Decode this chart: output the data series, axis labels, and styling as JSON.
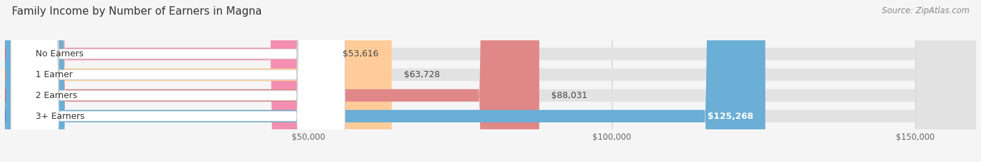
{
  "title": "Family Income by Number of Earners in Magna",
  "source": "Source: ZipAtlas.com",
  "categories": [
    "No Earners",
    "1 Earner",
    "2 Earners",
    "3+ Earners"
  ],
  "values": [
    53616,
    63728,
    88031,
    125268
  ],
  "labels": [
    "$53,616",
    "$63,728",
    "$88,031",
    "$125,268"
  ],
  "bar_colors": [
    "#f48fb1",
    "#ffcc99",
    "#e08888",
    "#6baed6"
  ],
  "dot_colors": [
    "#e8607a",
    "#e09050",
    "#c86060",
    "#4a80c0"
  ],
  "bg_color": "#f5f5f5",
  "bar_bg_color": "#e2e2e2",
  "xlim_min": 0,
  "xlim_max": 160000,
  "xticks": [
    50000,
    100000,
    150000
  ],
  "xticklabels": [
    "$50,000",
    "$100,000",
    "$150,000"
  ],
  "title_fontsize": 11,
  "label_fontsize": 9,
  "tick_fontsize": 8.5,
  "source_fontsize": 8.5,
  "bar_height": 0.6
}
